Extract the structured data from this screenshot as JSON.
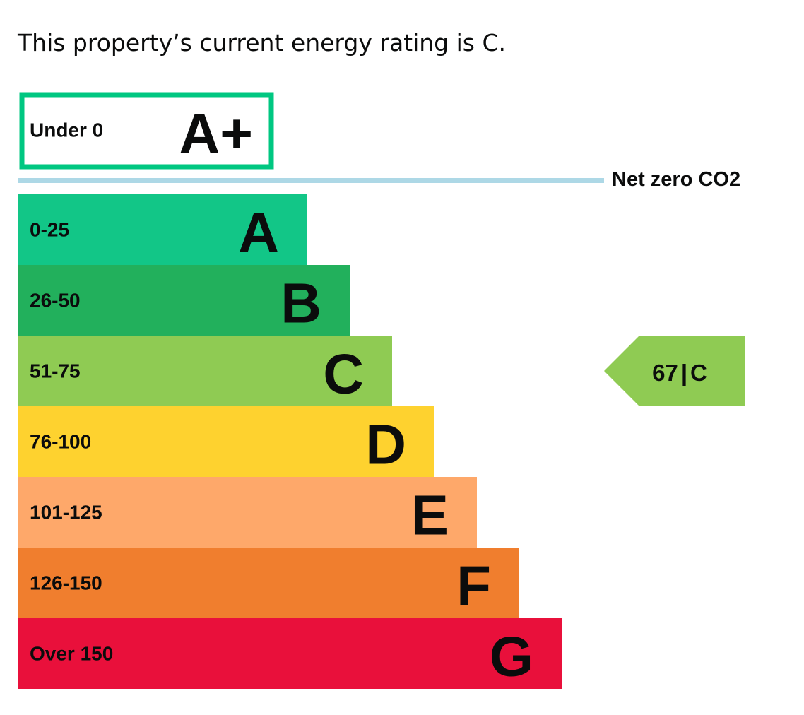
{
  "summary": {
    "text": "This property’s current energy rating is C."
  },
  "chart_data": {
    "type": "bar",
    "orientation": "horizontal",
    "title": "",
    "top_band": {
      "letter": "A+",
      "range": "Under 0",
      "border_color": "#00c781",
      "style": "outlined"
    },
    "net_zero": {
      "label": "Net zero CO2",
      "line_color": "#add8e6"
    },
    "categories": [
      "A",
      "B",
      "C",
      "D",
      "E",
      "F",
      "G"
    ],
    "bands": [
      {
        "letter": "A",
        "range": "0-25",
        "color": "#12c687",
        "rank": 1
      },
      {
        "letter": "B",
        "range": "26-50",
        "color": "#22b05c",
        "rank": 2
      },
      {
        "letter": "C",
        "range": "51-75",
        "color": "#8fcb53",
        "rank": 3
      },
      {
        "letter": "D",
        "range": "76-100",
        "color": "#fed22f",
        "rank": 4
      },
      {
        "letter": "E",
        "range": "101-125",
        "color": "#fea86a",
        "rank": 5
      },
      {
        "letter": "F",
        "range": "126-150",
        "color": "#f07e2e",
        "rank": 6
      },
      {
        "letter": "G",
        "range": "Over 150",
        "color": "#e9103b",
        "rank": 7
      }
    ],
    "current_rating": {
      "score": "67",
      "band": "C",
      "color": "#8fcb53"
    }
  }
}
